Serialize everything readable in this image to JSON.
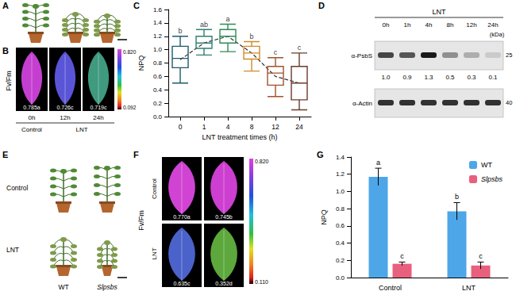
{
  "panel_letters": [
    "A",
    "B",
    "C",
    "D",
    "E",
    "F",
    "G"
  ],
  "panel_B": {
    "y_label": "Fv/Fm",
    "images": [
      "0.785a",
      "0.726c",
      "0.719c"
    ],
    "times": [
      "0h",
      "12h",
      "24h"
    ],
    "groups": [
      "Control",
      "LNT"
    ],
    "colorbar": [
      "0.820",
      "0.092"
    ]
  },
  "panel_D": {
    "title": "LNT",
    "lanes": [
      "0h",
      "1h",
      "4h",
      "8h",
      "12h",
      "24h"
    ],
    "unit": "(kDa)",
    "blots": [
      {
        "label": "α-PsbS",
        "kda": "25",
        "quant": [
          "1.0",
          "0.9",
          "1.3",
          "0.5",
          "0.3",
          "0.1"
        ]
      },
      {
        "label": "α-Actin",
        "kda": "40"
      }
    ]
  },
  "panel_E": {
    "rows": [
      "Control",
      "LNT"
    ],
    "columns": [
      "WT",
      "Slpsbs"
    ]
  },
  "panel_F": {
    "y_label": "Fv/Fm",
    "rows": [
      "Control",
      "LNT"
    ],
    "images": [
      [
        "0.770a",
        "0.745b"
      ],
      [
        "0.635c",
        "0.352d"
      ]
    ],
    "colorbar": [
      "0.820",
      "0.110"
    ]
  },
  "chart_data": [
    {
      "type": "boxplot",
      "x_label": "LNT treatment times (h)",
      "y_label": "NPQ",
      "categories": [
        "0",
        "1",
        "4",
        "8",
        "12",
        "24"
      ],
      "boxes": [
        [
          0.5,
          0.73,
          0.87,
          1.05,
          1.2
        ],
        [
          0.92,
          1.02,
          1.1,
          1.2,
          1.3
        ],
        [
          0.97,
          1.1,
          1.2,
          1.3,
          1.38
        ],
        [
          0.68,
          0.86,
          0.95,
          1.05,
          1.12
        ],
        [
          0.3,
          0.47,
          0.65,
          0.75,
          0.88
        ],
        [
          0.1,
          0.25,
          0.5,
          0.75,
          0.95
        ]
      ],
      "colors": [
        "#1f5a6b",
        "#2f7f73",
        "#2f8a55",
        "#d08a2a",
        "#a0522d",
        "#6b3a2a"
      ],
      "letters": [
        "b",
        "ab",
        "a",
        "b",
        "c",
        "c"
      ],
      "means": [
        0.85,
        1.1,
        1.2,
        0.95,
        0.6,
        0.5
      ],
      "line_style": "dashed",
      "ylim": [
        0,
        1.6
      ],
      "yticks": [
        {
          "value": 0,
          "label": "0.0"
        },
        0.2,
        0.4,
        0.6,
        0.8,
        {
          "value": 1,
          "label": "1.0"
        },
        1.2,
        1.4,
        1.6
      ],
      "grid": false
    },
    {
      "type": "bar",
      "y_label": "NPQ",
      "categories": [
        "Control",
        "LNT"
      ],
      "series": [
        {
          "name": "WT",
          "color": "#4da6e8",
          "values": [
            1.17,
            0.77
          ],
          "errors": [
            0.1,
            0.1
          ],
          "letters": [
            "a",
            "b"
          ]
        },
        {
          "name": "Slpsbs",
          "color": "#e8607e",
          "values": [
            0.16,
            0.14
          ],
          "errors": [
            0.02,
            0.04
          ],
          "letters": [
            "c",
            "c"
          ]
        }
      ],
      "ylim": [
        0,
        1.4
      ],
      "yticks": [
        {
          "value": 0,
          "label": "0.0"
        },
        0.2,
        0.4,
        0.6,
        0.8,
        {
          "value": 1,
          "label": "1.0"
        },
        1.2,
        1.4
      ],
      "legend": "upper right",
      "grid": false
    }
  ]
}
